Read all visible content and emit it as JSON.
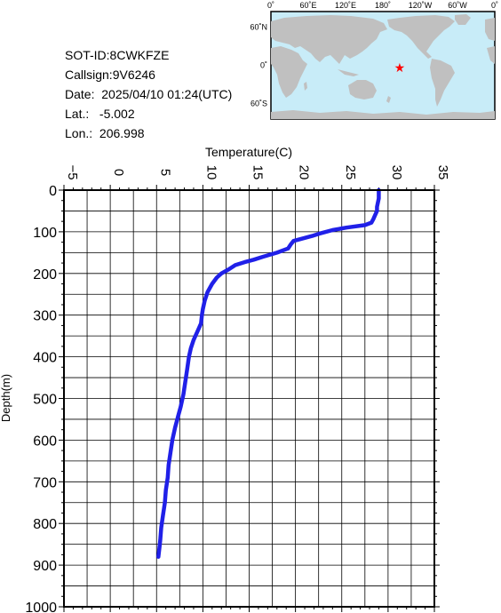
{
  "info": {
    "sot_id": "SOT-ID:8CWKFZE",
    "callsign": "Callsign:9V6246",
    "date": "Date:  2025/04/10 01:24(UTC)",
    "lat": "Lat.:   -5.002",
    "lon": "Lon.:  206.998"
  },
  "map": {
    "top_labels": [
      "0˚",
      "60˚E",
      "120˚E",
      "180˚",
      "120˚W",
      "60˚W",
      "0˚"
    ],
    "left_labels": [
      "60˚N",
      "0˚",
      "60˚S"
    ],
    "marker_lon": 206.998,
    "marker_lat": -5.002,
    "ocean_color": "#c8ecf8",
    "land_color": "#c0c0c0",
    "marker_color": "#ff0000"
  },
  "chart_data": {
    "type": "line",
    "xlabel": "Temperature(C)",
    "ylabel": "Depth(m)",
    "xlim": [
      -5,
      35
    ],
    "ylim": [
      0,
      1000
    ],
    "x_ticks": [
      -5,
      0,
      5,
      10,
      15,
      20,
      25,
      30,
      35
    ],
    "y_ticks": [
      0,
      100,
      200,
      300,
      400,
      500,
      600,
      700,
      800,
      900,
      1000
    ],
    "grid": true,
    "line_color": "#2020e8",
    "series": [
      {
        "points": [
          [
            29.0,
            0
          ],
          [
            29.0,
            10
          ],
          [
            29.0,
            20
          ],
          [
            28.9,
            30
          ],
          [
            28.8,
            40
          ],
          [
            28.8,
            50
          ],
          [
            28.6,
            60
          ],
          [
            28.4,
            70
          ],
          [
            28.2,
            78
          ],
          [
            27.5,
            84
          ],
          [
            25.5,
            90
          ],
          [
            24.0,
            96
          ],
          [
            22.5,
            105
          ],
          [
            21.8,
            110
          ],
          [
            20.6,
            117
          ],
          [
            19.8,
            122
          ],
          [
            19.5,
            130
          ],
          [
            19.2,
            140
          ],
          [
            18.0,
            150
          ],
          [
            16.5,
            160
          ],
          [
            15.5,
            167
          ],
          [
            14.5,
            173
          ],
          [
            13.5,
            180
          ],
          [
            12.8,
            190
          ],
          [
            12.0,
            200
          ],
          [
            11.5,
            210
          ],
          [
            11.0,
            225
          ],
          [
            10.5,
            245
          ],
          [
            10.2,
            265
          ],
          [
            10.0,
            285
          ],
          [
            9.9,
            300
          ],
          [
            9.8,
            320
          ],
          [
            9.4,
            340
          ],
          [
            9.0,
            360
          ],
          [
            8.7,
            380
          ],
          [
            8.5,
            400
          ],
          [
            8.3,
            430
          ],
          [
            8.1,
            460
          ],
          [
            7.9,
            490
          ],
          [
            7.6,
            520
          ],
          [
            7.3,
            545
          ],
          [
            7.0,
            570
          ],
          [
            6.7,
            600
          ],
          [
            6.5,
            630
          ],
          [
            6.3,
            660
          ],
          [
            6.2,
            690
          ],
          [
            6.0,
            720
          ],
          [
            5.9,
            750
          ],
          [
            5.7,
            780
          ],
          [
            5.5,
            810
          ],
          [
            5.4,
            840
          ],
          [
            5.3,
            860
          ],
          [
            5.2,
            880
          ]
        ]
      }
    ]
  }
}
